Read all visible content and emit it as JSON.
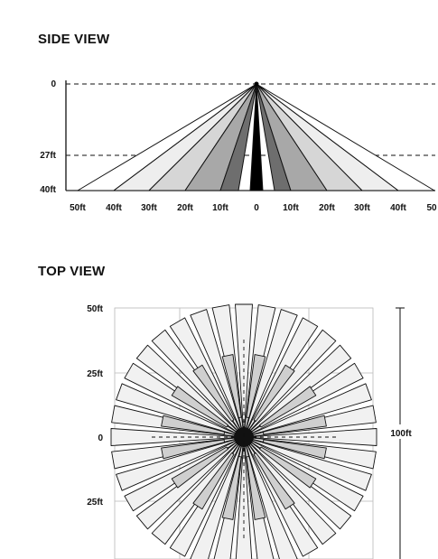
{
  "side_view": {
    "title": "SIDE VIEW",
    "y_labels": [
      "0",
      "27ft",
      "40ft"
    ],
    "x_labels": [
      "50ft",
      "40ft",
      "30ft",
      "20ft",
      "10ft",
      "0",
      "10ft",
      "20ft",
      "30ft",
      "40ft",
      "50"
    ],
    "beam_fills": [
      "#ffffff",
      "#eeeeee",
      "#d6d6d6",
      "#a8a8a8",
      "#6e6e6e",
      "#000000"
    ]
  },
  "top_view": {
    "title": "TOP VIEW",
    "y_labels": [
      "50ft",
      "25ft",
      "0",
      "25ft"
    ],
    "dimension_label": "100ft",
    "long_beam_count": 36,
    "short_beam_count": 16,
    "long_beam_fill": "#f1f1f1",
    "short_beam_fill": "#cfcfcf"
  }
}
